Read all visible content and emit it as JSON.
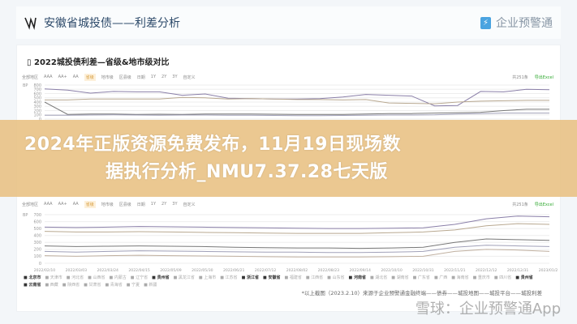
{
  "header": {
    "title": "安徽省城投债——利差分析",
    "brand": "企业预警通",
    "brand_icon": "bolt-icon"
  },
  "card": {
    "title": "2022城投债利差—省级&地市级对比",
    "filters": [
      "全部地区",
      "AAA",
      "AA+",
      "AA",
      "省级",
      "地市级",
      "区县级",
      "日期",
      "1Y",
      "2Y",
      "3Y",
      "自定义"
    ],
    "selected_filter": "省级",
    "count": "共251条",
    "export": "导出Excel"
  },
  "chart_data": [
    {
      "type": "line",
      "ylabel": "BP",
      "ylim": [
        0,
        800
      ],
      "yticks": [
        "800",
        "700",
        "600",
        "500",
        "400",
        "300",
        "200",
        "100",
        "0"
      ],
      "series": [
        {
          "values": [
            710,
            680,
            610,
            650,
            640,
            640,
            560,
            590,
            490,
            480,
            470,
            470,
            480,
            520,
            580,
            560,
            540,
            310,
            320,
            650,
            640,
            700,
            690
          ]
        },
        {
          "values": [
            450,
            450,
            470,
            470,
            470,
            470,
            510,
            500,
            470,
            480,
            470,
            460,
            460,
            450,
            460,
            380,
            370,
            360,
            400,
            420,
            430,
            440,
            440
          ]
        },
        {
          "values": [
            400,
            110,
            120,
            120,
            110,
            115,
            110,
            120,
            120,
            120,
            115,
            110,
            110,
            110,
            120,
            130,
            130,
            140,
            150,
            160,
            200,
            230,
            230
          ]
        },
        {
          "values": [
            90,
            90,
            95,
            100,
            95,
            90,
            95,
            95,
            90,
            90,
            85,
            80,
            80,
            85,
            90,
            95,
            95,
            100,
            120,
            130,
            140,
            140,
            140
          ]
        }
      ]
    },
    {
      "type": "line",
      "ylabel": "BP",
      "ylim": [
        0,
        700
      ],
      "yticks": [
        "700",
        "600",
        "500",
        "400",
        "300",
        "200",
        "100",
        "0"
      ],
      "x": [
        "2022/02/10",
        "2022/03/03",
        "2022/03/24",
        "2022/04/15",
        "2022/05/09",
        "2022/05/30",
        "2022/06/21",
        "2022/07/12",
        "2022/08/02",
        "2022/08/23",
        "2022/09/14",
        "2022/10/10",
        "2022/10/31",
        "2022/11/21",
        "2022/12/12",
        "2022/12/31",
        "2023/01/29"
      ],
      "series": [
        {
          "values": [
            520,
            515,
            520,
            530,
            525,
            520,
            515,
            510,
            505,
            500,
            500,
            505,
            510,
            560,
            640,
            680,
            670
          ]
        },
        {
          "values": [
            460,
            450,
            450,
            455,
            450,
            445,
            440,
            435,
            430,
            430,
            430,
            440,
            450,
            480,
            540,
            570,
            560
          ]
        },
        {
          "values": [
            250,
            240,
            245,
            250,
            245,
            240,
            230,
            225,
            220,
            220,
            215,
            220,
            230,
            300,
            350,
            340,
            330
          ]
        },
        {
          "values": [
            170,
            160,
            170,
            180,
            175,
            170,
            165,
            160,
            160,
            155,
            155,
            160,
            170,
            230,
            260,
            250,
            240
          ]
        },
        {
          "values": [
            110,
            100,
            110,
            115,
            110,
            105,
            100,
            95,
            90,
            90,
            90,
            95,
            100,
            170,
            200,
            190,
            170
          ]
        }
      ]
    }
  ],
  "legend": {
    "row1": [
      "北京市",
      "天津市",
      "河北省",
      "山西省",
      "内蒙古",
      "辽宁省",
      "贵州省",
      "黑龙江省",
      "上海市",
      "江苏省",
      "浙江省",
      "安徽省",
      "福建省",
      "江西省",
      "山东省",
      "河南省",
      "湖北省",
      "湖南省",
      "广东省",
      "广西",
      "海南省",
      "重庆市",
      "四川省",
      "贵州省"
    ],
    "row2": [
      "云南省",
      "西藏",
      "陕西省",
      "甘肃省",
      "青海省",
      "宁夏",
      "新疆"
    ],
    "bold": [
      "北京市",
      "贵州省",
      "浙江省",
      "安徽省",
      "河南省",
      "云南省"
    ]
  },
  "footnote": "*以上截图（2023.2.10）来源于企业预警通金融终端——债券——城投地图——城投平台——城投利差",
  "banner": {
    "line1": "2024年正版资源免费发布，11月19日现场数",
    "line2": "据执行分析_NMU7.37.28七天版"
  },
  "watermark": "雪球：企业预警通App"
}
